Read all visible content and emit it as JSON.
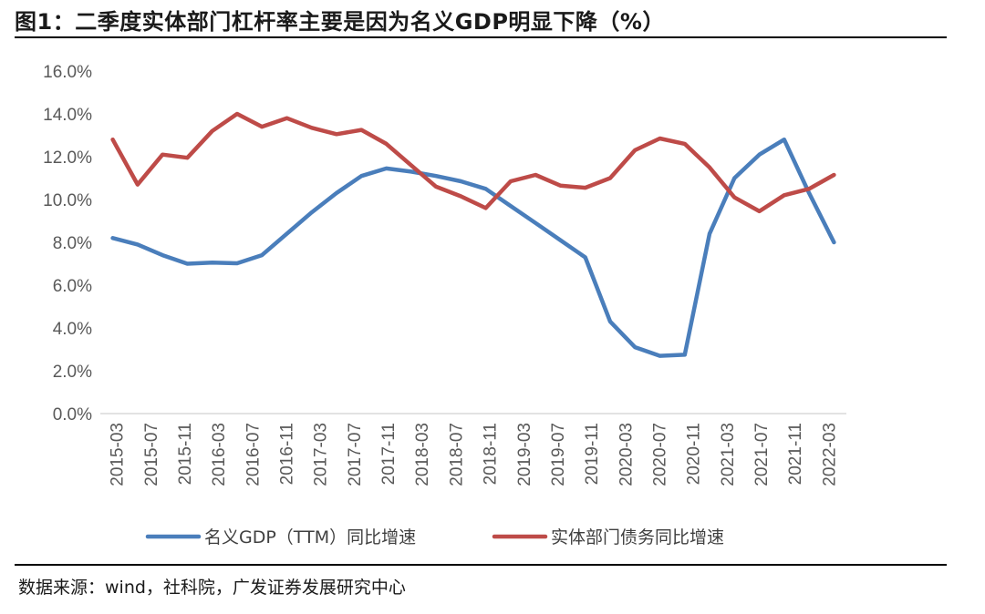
{
  "title": "图1：二季度实体部门杠杆率主要是因为名义GDP明显下降（%）",
  "source": "数据来源：wind，社科院，广发证券发展研究中心",
  "colors": {
    "gdp": "#4A7EBB",
    "debt": "#BE4B48",
    "axis": "#D9D9D9",
    "text": "#595959"
  },
  "chart_data": {
    "type": "line",
    "title": "二季度实体部门杠杆率主要是因为名义GDP明显下降（%）",
    "xlabel": "",
    "ylabel": "",
    "ylim": [
      0,
      16
    ],
    "yticks": [
      "0.0%",
      "2.0%",
      "4.0%",
      "6.0%",
      "8.0%",
      "10.0%",
      "12.0%",
      "14.0%",
      "16.0%"
    ],
    "x": [
      "2015-03",
      "2015-06",
      "2015-09",
      "2015-12",
      "2016-03",
      "2016-06",
      "2016-09",
      "2016-12",
      "2017-03",
      "2017-06",
      "2017-09",
      "2017-12",
      "2018-03",
      "2018-06",
      "2018-09",
      "2018-12",
      "2019-03",
      "2019-06",
      "2019-09",
      "2019-12",
      "2020-03",
      "2020-06",
      "2020-09",
      "2020-12",
      "2021-03",
      "2021-06",
      "2021-09",
      "2021-12",
      "2022-03",
      "2022-06"
    ],
    "xtick_labels": [
      "2015-03",
      "2015-07",
      "2015-11",
      "2016-03",
      "2016-07",
      "2016-11",
      "2017-03",
      "2017-07",
      "2017-11",
      "2018-03",
      "2018-07",
      "2018-11",
      "2019-03",
      "2019-07",
      "2019-11",
      "2020-03",
      "2020-07",
      "2020-11",
      "2021-03",
      "2021-07",
      "2021-11",
      "2022-03"
    ],
    "series": [
      {
        "name": "名义GDP（TTM）同比增速",
        "color": "#4A7EBB",
        "values": [
          8.2,
          7.9,
          7.4,
          7.0,
          7.05,
          7.02,
          7.4,
          8.4,
          9.4,
          10.3,
          11.1,
          11.45,
          11.3,
          11.1,
          10.85,
          10.5,
          9.7,
          8.9,
          8.1,
          7.3,
          4.3,
          3.1,
          2.7,
          2.75,
          8.4,
          11.0,
          12.1,
          12.8,
          10.3,
          8.0
        ]
      },
      {
        "name": "实体部门债务同比增速",
        "color": "#BE4B48",
        "values": [
          12.8,
          10.7,
          12.1,
          11.95,
          13.2,
          14.0,
          13.4,
          13.8,
          13.35,
          13.05,
          13.25,
          12.6,
          11.6,
          10.6,
          10.15,
          9.6,
          10.85,
          11.15,
          10.65,
          10.55,
          11.0,
          12.3,
          12.85,
          12.6,
          11.5,
          10.1,
          9.45,
          10.2,
          10.5,
          11.15
        ]
      }
    ],
    "legend_position": "bottom"
  }
}
